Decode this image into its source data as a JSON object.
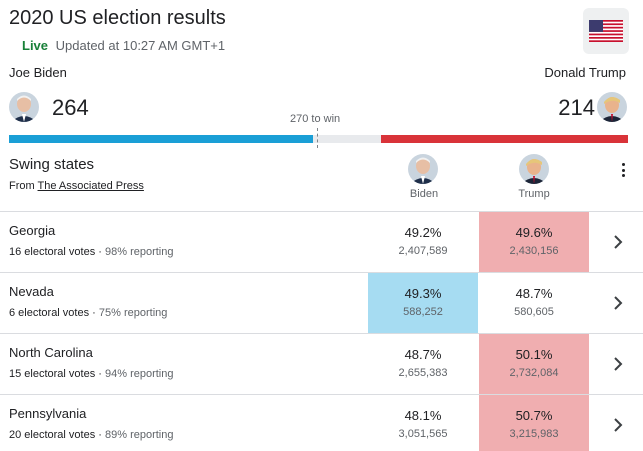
{
  "header": {
    "title": "2020 US election results",
    "live_label": "Live",
    "updated_text": "Updated at 10:27 AM GMT+1",
    "flag_icon": "us-flag-icon"
  },
  "candidates": {
    "left": {
      "name": "Joe Biden",
      "electoral_votes": "264",
      "color": "#1a9fd6"
    },
    "right": {
      "name": "Donald Trump",
      "electoral_votes": "214",
      "color": "#d93339"
    },
    "threshold_label": "270 to win"
  },
  "swing": {
    "title": "Swing states",
    "source_prefix": "From",
    "source_link": "The Associated Press",
    "col_biden": "Biden",
    "col_trump": "Trump"
  },
  "states": [
    {
      "name": "Georgia",
      "electoral": "16 electoral votes",
      "reporting": "98% reporting",
      "biden_pct": "49.2%",
      "biden_votes": "2,407,589",
      "trump_pct": "49.6%",
      "trump_votes": "2,430,156",
      "leader": "trump"
    },
    {
      "name": "Nevada",
      "electoral": "6 electoral votes",
      "reporting": "75% reporting",
      "biden_pct": "49.3%",
      "biden_votes": "588,252",
      "trump_pct": "48.7%",
      "trump_votes": "580,605",
      "leader": "biden"
    },
    {
      "name": "North Carolina",
      "electoral": "15 electoral votes",
      "reporting": "94% reporting",
      "biden_pct": "48.7%",
      "biden_votes": "2,655,383",
      "trump_pct": "50.1%",
      "trump_votes": "2,732,084",
      "leader": "trump"
    },
    {
      "name": "Pennsylvania",
      "electoral": "20 electoral votes",
      "reporting": "89% reporting",
      "biden_pct": "48.1%",
      "biden_votes": "3,051,565",
      "trump_pct": "50.7%",
      "trump_votes": "3,215,983",
      "leader": "trump"
    }
  ]
}
